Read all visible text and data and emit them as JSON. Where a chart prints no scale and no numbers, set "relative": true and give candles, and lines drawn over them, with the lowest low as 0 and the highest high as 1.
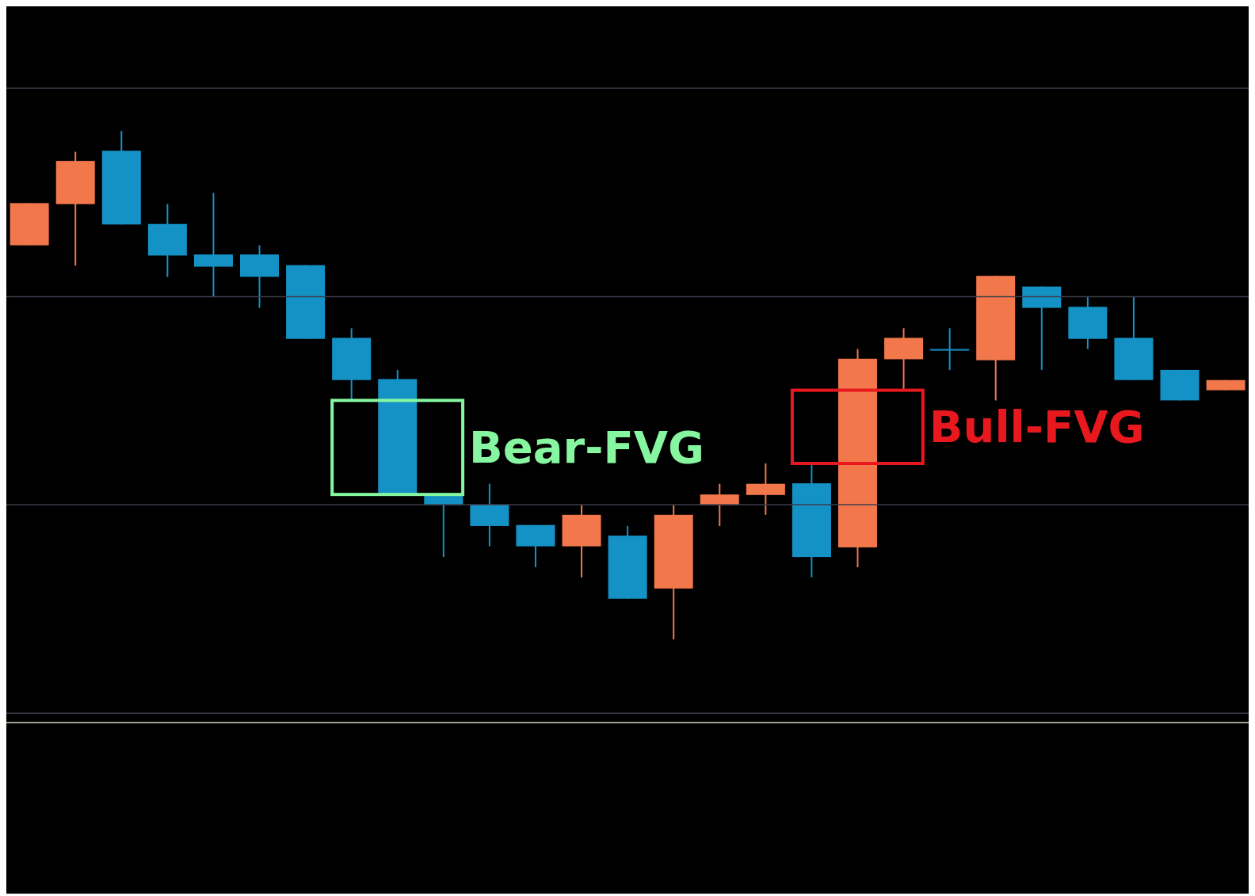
{
  "chart_data": {
    "type": "candlestick",
    "relative": true,
    "tick_labels": false,
    "categories": [
      null,
      null,
      null,
      null,
      null,
      null,
      null,
      null,
      null,
      null,
      null,
      null,
      null,
      null,
      null,
      null,
      null,
      null,
      null,
      null,
      null,
      null,
      null,
      null,
      null,
      null,
      null
    ],
    "ohlc": [
      [
        0.775,
        0.858,
        0.775,
        0.858
      ],
      [
        0.856,
        0.959,
        0.735,
        0.941
      ],
      [
        0.961,
        1.0,
        0.816,
        0.816
      ],
      [
        0.817,
        0.856,
        0.713,
        0.755
      ],
      [
        0.757,
        0.878,
        0.674,
        0.733
      ],
      [
        0.757,
        0.775,
        0.652,
        0.713
      ],
      [
        0.736,
        0.736,
        0.591,
        0.591
      ],
      [
        0.593,
        0.612,
        0.47,
        0.51
      ],
      [
        0.512,
        0.53,
        0.287,
        0.287
      ],
      [
        0.285,
        0.285,
        0.162,
        0.264
      ],
      [
        0.265,
        0.306,
        0.183,
        0.223
      ],
      [
        0.225,
        0.225,
        0.142,
        0.183
      ],
      [
        0.183,
        0.264,
        0.122,
        0.245
      ],
      [
        0.204,
        0.223,
        0.08,
        0.08
      ],
      [
        0.1,
        0.264,
        0,
        0.245
      ],
      [
        0.264,
        0.306,
        0.223,
        0.285
      ],
      [
        0.284,
        0.346,
        0.245,
        0.306
      ],
      [
        0.307,
        0.346,
        0.122,
        0.162
      ],
      [
        0.181,
        0.571,
        0.142,
        0.552
      ],
      [
        0.551,
        0.612,
        0.49,
        0.593
      ],
      [
        0.571,
        0.612,
        0.53,
        0.571
      ],
      [
        0.549,
        0.715,
        0.47,
        0.715
      ],
      [
        0.694,
        0.694,
        0.53,
        0.652
      ],
      [
        0.654,
        0.674,
        0.571,
        0.591
      ],
      [
        0.593,
        0.674,
        0.51,
        0.51
      ],
      [
        0.53,
        0.53,
        0.47,
        0.47
      ],
      [
        0.49,
        0.51,
        0.49,
        0.51
      ]
    ],
    "colors": [
      "#f2784b",
      "#f2784b",
      "#1592c5",
      "#1592c5",
      "#1592c5",
      "#1592c5",
      "#1592c5",
      "#1592c5",
      "#1592c5",
      "#1592c5",
      "#1592c5",
      "#1592c5",
      "#f2784b",
      "#1592c5",
      "#f2784b",
      "#f2784b",
      "#f2784b",
      "#1592c5",
      "#f2784b",
      "#f2784b",
      "#1592c5",
      "#f2784b",
      "#1592c5",
      "#1592c5",
      "#1592c5",
      "#1592c5",
      "#f2784b"
    ],
    "ref_lines": [
      {
        "axis": "y",
        "value": 1.084,
        "color": "#3c3c4c"
      },
      {
        "axis": "y",
        "value": 0.674,
        "color": "#3c3c4c"
      },
      {
        "axis": "y",
        "value": 0.265,
        "color": "#3c3c4c"
      },
      {
        "axis": "y",
        "value": -0.145,
        "color": "#3c3c4c"
      },
      {
        "axis": "y",
        "value": -0.164,
        "color": "#d8d4c0"
      }
    ],
    "annotations": [
      "Bear-FVG",
      "Bull-FVG"
    ]
  }
}
